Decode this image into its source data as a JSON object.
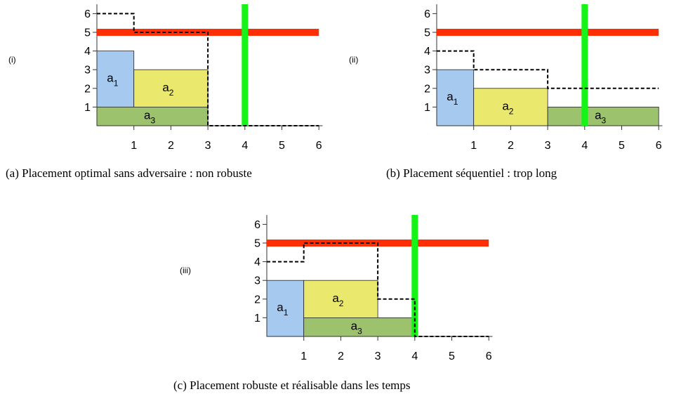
{
  "colors": {
    "a1": "#a6c9ef",
    "a2": "#ebe96d",
    "a3": "#9cc26d",
    "adversary_bar": "#ff2f05",
    "time_bar": "#16f316",
    "dashed": "#000000"
  },
  "panels": [
    {
      "id": "a",
      "tag": "(i)",
      "caption": "(a) Placement optimal sans adversaire : non robuste",
      "x_ticks": [
        "1",
        "2",
        "3",
        "4",
        "5",
        "6"
      ],
      "y_ticks": [
        "1",
        "2",
        "3",
        "4",
        "5",
        "6"
      ],
      "tasks": [
        {
          "name": "a",
          "sub": "1",
          "x0": 0,
          "x1": 1,
          "y0": 1,
          "y1": 4,
          "color": "a1"
        },
        {
          "name": "a",
          "sub": "2",
          "x0": 1,
          "x1": 3,
          "y0": 1,
          "y1": 3,
          "color": "a2"
        },
        {
          "name": "a",
          "sub": "3",
          "x0": 0,
          "x1": 3,
          "y0": 0,
          "y1": 1,
          "color": "a3"
        }
      ],
      "red_bar": {
        "y": 5,
        "x0": 0,
        "x1": 6
      },
      "green_bar": {
        "x": 4
      },
      "dashed_path": [
        [
          0,
          6
        ],
        [
          1,
          6
        ],
        [
          1,
          5
        ],
        [
          3,
          5
        ],
        [
          3,
          0
        ],
        [
          6,
          0
        ]
      ]
    },
    {
      "id": "b",
      "tag": "(ii)",
      "caption": "(b) Placement séquentiel : trop long",
      "x_ticks": [
        "1",
        "2",
        "3",
        "4",
        "5",
        "6"
      ],
      "y_ticks": [
        "1",
        "2",
        "3",
        "4",
        "5",
        "6"
      ],
      "tasks": [
        {
          "name": "a",
          "sub": "1",
          "x0": 0,
          "x1": 1,
          "y0": 0,
          "y1": 3,
          "color": "a1"
        },
        {
          "name": "a",
          "sub": "2",
          "x0": 1,
          "x1": 3,
          "y0": 0,
          "y1": 2,
          "color": "a2"
        },
        {
          "name": "a",
          "sub": "3",
          "x0": 3,
          "x1": 6,
          "y0": 0,
          "y1": 1,
          "color": "a3"
        }
      ],
      "red_bar": {
        "y": 5,
        "x0": 0,
        "x1": 6
      },
      "green_bar": {
        "x": 4
      },
      "dashed_path": [
        [
          0,
          4
        ],
        [
          1,
          4
        ],
        [
          1,
          3
        ],
        [
          3,
          3
        ],
        [
          3,
          2
        ],
        [
          6,
          2
        ]
      ]
    },
    {
      "id": "c",
      "tag": "(iii)",
      "caption": "(c) Placement robuste et réalisable dans les temps",
      "x_ticks": [
        "1",
        "2",
        "3",
        "4",
        "5",
        "6"
      ],
      "y_ticks": [
        "1",
        "2",
        "3",
        "4",
        "5",
        "6"
      ],
      "tasks": [
        {
          "name": "a",
          "sub": "1",
          "x0": 0,
          "x1": 1,
          "y0": 0,
          "y1": 3,
          "color": "a1"
        },
        {
          "name": "a",
          "sub": "2",
          "x0": 1,
          "x1": 3,
          "y0": 1,
          "y1": 3,
          "color": "a2"
        },
        {
          "name": "a",
          "sub": "3",
          "x0": 1,
          "x1": 4,
          "y0": 0,
          "y1": 1,
          "color": "a3"
        }
      ],
      "red_bar": {
        "y": 5,
        "x0": 0,
        "x1": 6
      },
      "green_bar": {
        "x": 4
      },
      "dashed_path": [
        [
          0,
          4
        ],
        [
          1,
          4
        ],
        [
          1,
          5
        ],
        [
          3,
          5
        ],
        [
          3,
          2
        ],
        [
          4,
          2
        ],
        [
          4,
          0
        ],
        [
          6,
          0
        ]
      ]
    }
  ]
}
